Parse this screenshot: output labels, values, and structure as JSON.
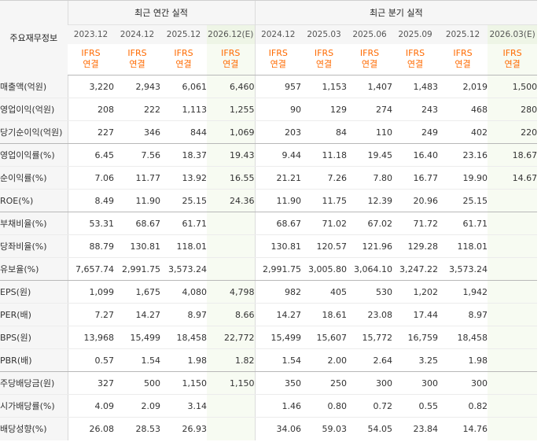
{
  "header": {
    "label": "주요재무정보",
    "annual_title": "최근 연간 실적",
    "quarter_title": "최근 분기 실적"
  },
  "periods": [
    "2023.12",
    "2024.12",
    "2025.12",
    "2026.12(E)",
    "2024.12",
    "2025.03",
    "2025.06",
    "2025.09",
    "2025.12",
    "2026.03(E)"
  ],
  "standard": [
    "IFRS",
    "연결"
  ],
  "rows": [
    {
      "label": "매출액(억원)",
      "values": [
        "3,220",
        "2,943",
        "6,061",
        "6,460",
        "957",
        "1,153",
        "1,407",
        "1,483",
        "2,019",
        "1,500"
      ]
    },
    {
      "label": "영업이익(억원)",
      "values": [
        "208",
        "222",
        "1,113",
        "1,255",
        "90",
        "129",
        "274",
        "243",
        "468",
        "280"
      ]
    },
    {
      "label": "당기순이익(억원)",
      "values": [
        "227",
        "346",
        "844",
        "1,069",
        "203",
        "84",
        "110",
        "249",
        "402",
        "220"
      ]
    },
    {
      "label": "영업이익률(%)",
      "values": [
        "6.45",
        "7.56",
        "18.37",
        "19.43",
        "9.44",
        "11.18",
        "19.45",
        "16.40",
        "23.16",
        "18.67"
      ]
    },
    {
      "label": "순이익률(%)",
      "values": [
        "7.06",
        "11.77",
        "13.92",
        "16.55",
        "21.21",
        "7.26",
        "7.80",
        "16.77",
        "19.90",
        "14.67"
      ]
    },
    {
      "label": "ROE(%)",
      "values": [
        "8.49",
        "11.90",
        "25.15",
        "24.36",
        "11.90",
        "11.75",
        "12.39",
        "20.96",
        "25.15",
        ""
      ]
    },
    {
      "label": "부채비율(%)",
      "values": [
        "53.31",
        "68.67",
        "61.71",
        "",
        "68.67",
        "71.02",
        "67.02",
        "71.72",
        "61.71",
        ""
      ]
    },
    {
      "label": "당좌비율(%)",
      "values": [
        "88.79",
        "130.81",
        "118.01",
        "",
        "130.81",
        "120.57",
        "121.96",
        "129.28",
        "118.01",
        ""
      ]
    },
    {
      "label": "유보율(%)",
      "values": [
        "7,657.74",
        "2,991.75",
        "3,573.24",
        "",
        "2,991.75",
        "3,005.80",
        "3,064.10",
        "3,247.22",
        "3,573.24",
        ""
      ]
    },
    {
      "label": "EPS(원)",
      "values": [
        "1,099",
        "1,675",
        "4,080",
        "4,798",
        "982",
        "405",
        "530",
        "1,202",
        "1,942",
        ""
      ]
    },
    {
      "label": "PER(배)",
      "values": [
        "7.27",
        "14.27",
        "8.97",
        "8.66",
        "14.27",
        "18.61",
        "23.08",
        "17.44",
        "8.97",
        ""
      ]
    },
    {
      "label": "BPS(원)",
      "values": [
        "13,968",
        "15,499",
        "18,458",
        "22,772",
        "15,499",
        "15,607",
        "15,772",
        "16,759",
        "18,458",
        ""
      ]
    },
    {
      "label": "PBR(배)",
      "values": [
        "0.57",
        "1.54",
        "1.98",
        "1.82",
        "1.54",
        "2.00",
        "2.64",
        "3.25",
        "1.98",
        ""
      ]
    },
    {
      "label": "주당배당금(원)",
      "values": [
        "327",
        "500",
        "1,150",
        "1,150",
        "350",
        "250",
        "300",
        "300",
        "300",
        ""
      ]
    },
    {
      "label": "시가배당률(%)",
      "values": [
        "4.09",
        "2.09",
        "3.14",
        "",
        "1.46",
        "0.80",
        "0.72",
        "0.55",
        "0.82",
        ""
      ]
    },
    {
      "label": "배당성향(%)",
      "values": [
        "26.08",
        "28.53",
        "26.93",
        "",
        "34.06",
        "59.03",
        "54.05",
        "23.84",
        "14.76",
        ""
      ]
    }
  ],
  "group_ends": [
    2,
    5,
    8,
    12
  ]
}
